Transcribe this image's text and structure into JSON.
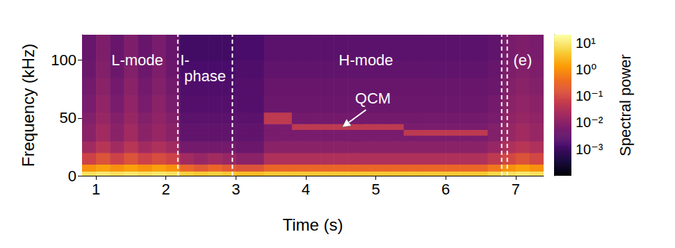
{
  "chart_data": {
    "type": "heatmap",
    "xlabel": "Time (s)",
    "ylabel": "Frequency (kHz)",
    "xlim": [
      0.8,
      7.4
    ],
    "xticks": [
      1,
      2,
      3,
      4,
      5,
      6,
      7
    ],
    "ylim": [
      0,
      122
    ],
    "yticks": [
      0,
      50,
      100
    ],
    "x_edges": [
      0.8,
      1,
      1.2,
      1.4,
      1.6,
      1.8,
      2,
      2.2,
      2.4,
      2.6,
      2.8,
      3,
      3.2,
      3.4,
      3.6,
      3.8,
      4,
      4.2,
      4.4,
      4.6,
      4.8,
      5,
      5.2,
      5.4,
      5.6,
      5.8,
      6,
      6.2,
      6.4,
      6.6,
      6.8,
      7,
      7.2,
      7.4
    ],
    "y_edges": [
      0,
      4,
      10,
      20,
      30,
      35,
      40,
      45,
      55,
      70,
      85,
      100,
      122
    ],
    "cells": [
      [
        8,
        10,
        8,
        10,
        8,
        10,
        8,
        5,
        4,
        5,
        4,
        3,
        3,
        4,
        4,
        4,
        4,
        4,
        4,
        4,
        4,
        4,
        4,
        4,
        4,
        4,
        4,
        4,
        4,
        6,
        8,
        10,
        8
      ],
      [
        1,
        1.5,
        1,
        1.5,
        1,
        1.5,
        1,
        0.3,
        0.2,
        0.3,
        0.2,
        0.15,
        0.15,
        0.3,
        0.3,
        0.3,
        0.3,
        0.3,
        0.3,
        0.3,
        0.3,
        0.3,
        0.3,
        0.3,
        0.3,
        0.3,
        0.3,
        0.3,
        0.3,
        0.5,
        1,
        1.5,
        1
      ],
      [
        0.08,
        0.15,
        0.08,
        0.15,
        0.08,
        0.12,
        0.08,
        0.02,
        0.015,
        0.02,
        0.015,
        0.01,
        0.01,
        0.03,
        0.03,
        0.03,
        0.03,
        0.03,
        0.03,
        0.03,
        0.03,
        0.03,
        0.03,
        0.03,
        0.03,
        0.03,
        0.03,
        0.03,
        0.03,
        0.05,
        0.1,
        0.15,
        0.1
      ],
      [
        0.02,
        0.04,
        0.02,
        0.04,
        0.02,
        0.03,
        0.02,
        0.005,
        0.005,
        0.005,
        0.005,
        0.004,
        0.004,
        0.01,
        0.01,
        0.01,
        0.01,
        0.01,
        0.01,
        0.01,
        0.01,
        0.01,
        0.01,
        0.01,
        0.01,
        0.01,
        0.01,
        0.01,
        0.01,
        0.015,
        0.03,
        0.04,
        0.03
      ],
      [
        0.01,
        0.02,
        0.01,
        0.02,
        0.01,
        0.015,
        0.01,
        0.003,
        0.003,
        0.003,
        0.003,
        0.003,
        0.003,
        0.006,
        0.006,
        0.006,
        0.006,
        0.006,
        0.006,
        0.006,
        0.006,
        0.006,
        0.006,
        0.006,
        0.006,
        0.006,
        0.006,
        0.006,
        0.006,
        0.008,
        0.015,
        0.02,
        0.015
      ],
      [
        0.01,
        0.02,
        0.01,
        0.02,
        0.01,
        0.015,
        0.01,
        0.003,
        0.003,
        0.003,
        0.003,
        0.003,
        0.003,
        0.006,
        0.006,
        0.006,
        0.006,
        0.006,
        0.006,
        0.006,
        0.006,
        0.006,
        0.006,
        0.05,
        0.05,
        0.05,
        0.05,
        0.05,
        0.05,
        0.008,
        0.015,
        0.02,
        0.015
      ],
      [
        0.01,
        0.02,
        0.01,
        0.02,
        0.01,
        0.015,
        0.01,
        0.003,
        0.003,
        0.003,
        0.003,
        0.003,
        0.003,
        0.006,
        0.006,
        0.05,
        0.05,
        0.05,
        0.05,
        0.05,
        0.05,
        0.05,
        0.05,
        0.006,
        0.006,
        0.006,
        0.006,
        0.006,
        0.006,
        0.008,
        0.015,
        0.02,
        0.015
      ],
      [
        0.008,
        0.015,
        0.008,
        0.015,
        0.008,
        0.012,
        0.008,
        0.0025,
        0.0025,
        0.0025,
        0.0025,
        0.0025,
        0.0025,
        0.05,
        0.05,
        0.005,
        0.005,
        0.005,
        0.005,
        0.005,
        0.005,
        0.005,
        0.005,
        0.005,
        0.005,
        0.005,
        0.005,
        0.005,
        0.005,
        0.006,
        0.012,
        0.015,
        0.012
      ],
      [
        0.006,
        0.012,
        0.006,
        0.012,
        0.006,
        0.01,
        0.006,
        0.002,
        0.002,
        0.002,
        0.002,
        0.002,
        0.002,
        0.004,
        0.004,
        0.004,
        0.004,
        0.004,
        0.004,
        0.004,
        0.004,
        0.004,
        0.004,
        0.004,
        0.004,
        0.004,
        0.004,
        0.004,
        0.004,
        0.005,
        0.01,
        0.012,
        0.01
      ],
      [
        0.005,
        0.01,
        0.005,
        0.01,
        0.005,
        0.008,
        0.005,
        0.0018,
        0.0018,
        0.0018,
        0.0018,
        0.002,
        0.002,
        0.0035,
        0.0035,
        0.0035,
        0.0035,
        0.0035,
        0.0035,
        0.0035,
        0.0035,
        0.0035,
        0.0035,
        0.0035,
        0.0035,
        0.0035,
        0.0035,
        0.0035,
        0.0035,
        0.004,
        0.008,
        0.01,
        0.008
      ],
      [
        0.004,
        0.008,
        0.004,
        0.008,
        0.004,
        0.007,
        0.004,
        0.0015,
        0.0015,
        0.0015,
        0.0015,
        0.0018,
        0.0018,
        0.003,
        0.003,
        0.003,
        0.003,
        0.003,
        0.003,
        0.003,
        0.003,
        0.003,
        0.003,
        0.003,
        0.003,
        0.003,
        0.003,
        0.003,
        0.003,
        0.0035,
        0.007,
        0.008,
        0.007
      ],
      [
        0.0035,
        0.007,
        0.0035,
        0.007,
        0.0035,
        0.006,
        0.0035,
        0.0012,
        0.0012,
        0.0012,
        0.0012,
        0.0015,
        0.0015,
        0.0025,
        0.0025,
        0.0025,
        0.0025,
        0.0025,
        0.0025,
        0.0025,
        0.0025,
        0.0025,
        0.0025,
        0.0025,
        0.0025,
        0.0025,
        0.0025,
        0.0025,
        0.0025,
        0.003,
        0.006,
        0.007,
        0.006
      ]
    ],
    "colorbar": {
      "label": "Spectral power",
      "range": [
        0.0001,
        20
      ],
      "log": true,
      "ticks": [
        {
          "value": 10,
          "label": "10¹"
        },
        {
          "value": 1,
          "label": "10⁰"
        },
        {
          "value": 0.1,
          "label": "10⁻¹"
        },
        {
          "value": 0.01,
          "label": "10⁻²"
        },
        {
          "value": 0.001,
          "label": "10⁻³"
        }
      ]
    },
    "vlines": [
      2.17,
      2.95,
      6.8,
      6.88
    ],
    "annotations": [
      {
        "text": "L-mode",
        "x": 1.59,
        "y": 100
      },
      {
        "text": "I-",
        "x": 2.27,
        "y": 100
      },
      {
        "text": "phase",
        "x": 2.56,
        "y": 86
      },
      {
        "text": "H-mode",
        "x": 4.86,
        "y": 100
      },
      {
        "text": "(e)",
        "x": 7.1,
        "y": 100
      },
      {
        "text": "QCM",
        "x": 4.96,
        "y": 67,
        "arrow": [
          [
            4.86,
            57
          ],
          [
            4.52,
            42
          ]
        ]
      }
    ]
  }
}
